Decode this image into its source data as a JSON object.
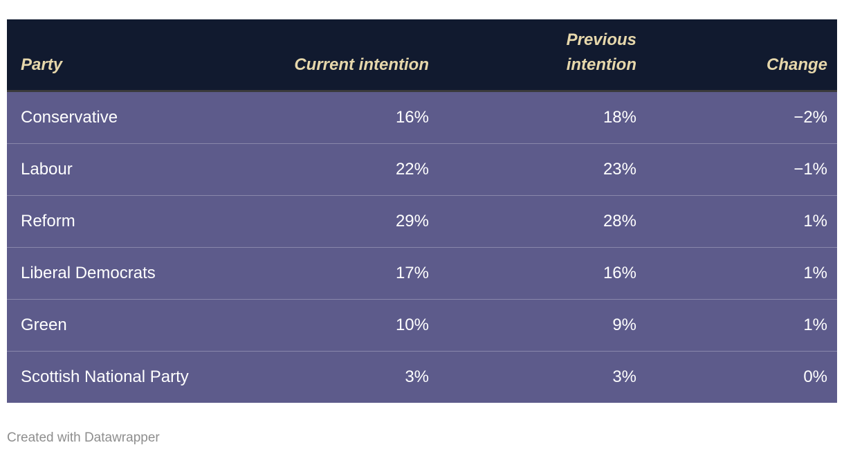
{
  "colors": {
    "header_bg": "#111a2f",
    "header_text": "#e6d7ab",
    "header_border": "#3a3a3c",
    "row_bg": "#5d5b8b",
    "row_text": "#ffffff",
    "row_divider": "rgba(255,255,255,0.28)",
    "footer_text": "#8e8e8e",
    "page_bg": "#ffffff"
  },
  "table": {
    "columns": [
      {
        "label": "Party",
        "align": "left"
      },
      {
        "label": "Current intention",
        "align": "right"
      },
      {
        "label": "Previous intention",
        "align": "right"
      },
      {
        "label": "Change",
        "align": "right"
      }
    ],
    "rows": [
      {
        "party": "Conservative",
        "current": "16%",
        "previous": "18%",
        "change": "−2%"
      },
      {
        "party": "Labour",
        "current": "22%",
        "previous": "23%",
        "change": "−1%"
      },
      {
        "party": "Reform",
        "current": "29%",
        "previous": "28%",
        "change": "1%"
      },
      {
        "party": "Liberal Democrats",
        "current": "17%",
        "previous": "16%",
        "change": "1%"
      },
      {
        "party": "Green",
        "current": "10%",
        "previous": "9%",
        "change": "1%"
      },
      {
        "party": "Scottish National Party",
        "current": "3%",
        "previous": "3%",
        "change": "0%"
      }
    ]
  },
  "footer": {
    "credit": "Created with Datawrapper"
  },
  "chart_data": {
    "type": "table",
    "title": "",
    "columns": [
      "Party",
      "Current intention",
      "Previous intention",
      "Change"
    ],
    "rows": [
      [
        "Conservative",
        "16%",
        "18%",
        "−2%"
      ],
      [
        "Labour",
        "22%",
        "23%",
        "−1%"
      ],
      [
        "Reform",
        "29%",
        "28%",
        "1%"
      ],
      [
        "Liberal Democrats",
        "17%",
        "16%",
        "1%"
      ],
      [
        "Green",
        "10%",
        "9%",
        "1%"
      ],
      [
        "Scottish National Party",
        "3%",
        "3%",
        "0%"
      ]
    ]
  }
}
